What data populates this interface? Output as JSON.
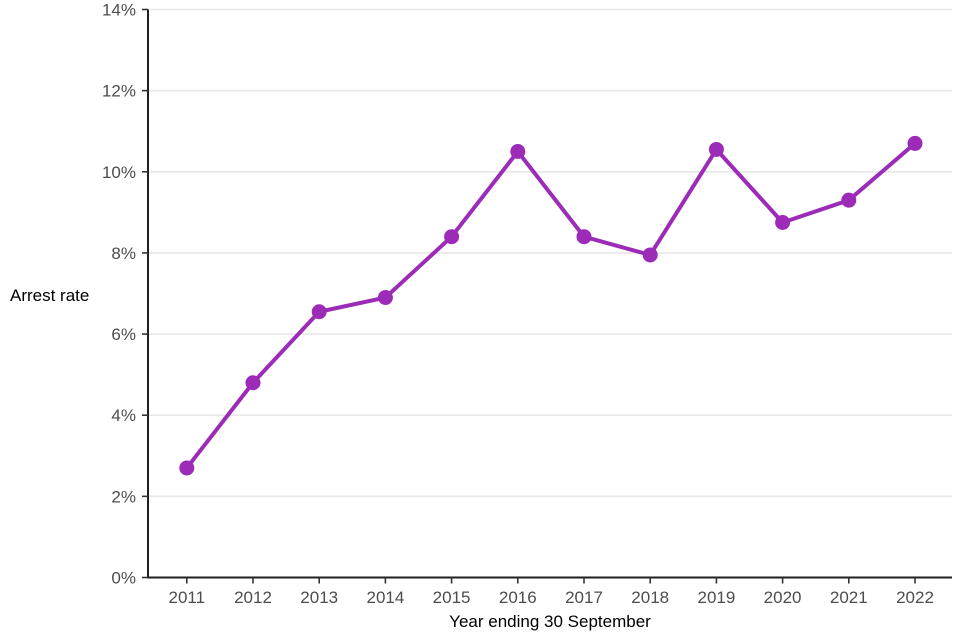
{
  "chart_data": {
    "type": "line",
    "title": "",
    "xlabel": "Year ending 30 September",
    "ylabel": "Arrest rate",
    "categories": [
      "2011",
      "2012",
      "2013",
      "2014",
      "2015",
      "2016",
      "2017",
      "2018",
      "2019",
      "2020",
      "2021",
      "2022"
    ],
    "series": [
      {
        "name": "Arrest rate",
        "values": [
          2.7,
          4.8,
          6.55,
          6.9,
          8.4,
          10.5,
          8.4,
          7.95,
          10.55,
          8.75,
          9.3,
          10.7
        ]
      }
    ],
    "ylim": [
      0,
      14
    ],
    "ytick_values": [
      0,
      2,
      4,
      6,
      8,
      10,
      12,
      14
    ],
    "ytick_labels": [
      "0%",
      "2%",
      "4%",
      "6%",
      "8%",
      "10%",
      "12%",
      "14%"
    ],
    "grid": "horizontal-only",
    "legend": "none"
  },
  "colors": {
    "line": "#9c2bb8",
    "point": "#9c2bb8",
    "grid": "#e7e7e7",
    "axis_line": "#1f1f1f",
    "tick_mark": "#333333",
    "tick_label": "#4d4d4d",
    "axis_title": "#000000",
    "background": "#ffffff"
  }
}
